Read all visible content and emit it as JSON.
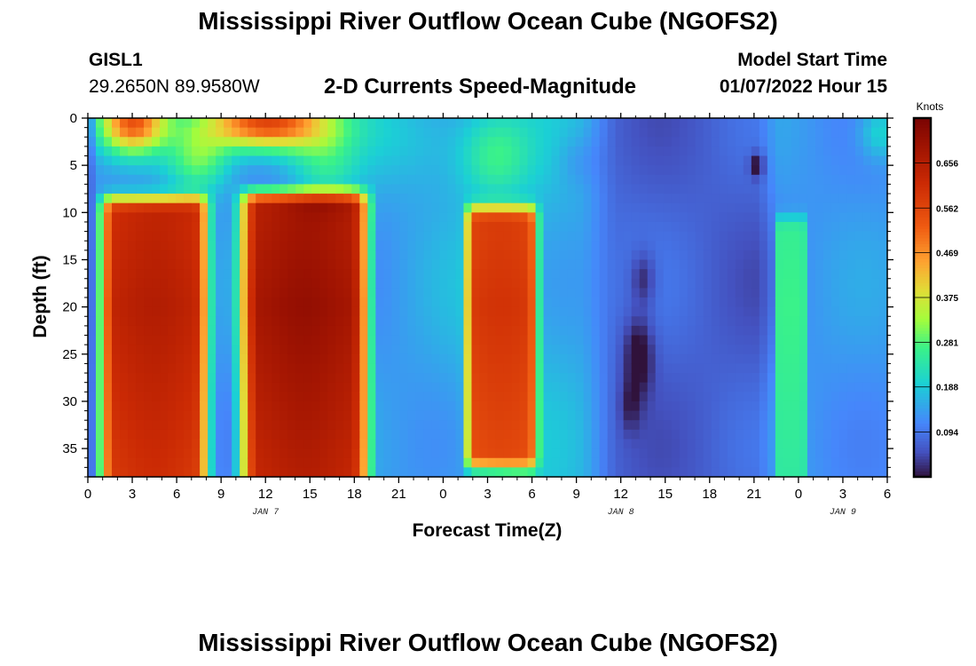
{
  "header": {
    "title": "Mississippi River Outflow Ocean Cube (NGOFS2)",
    "station_id": "GISL1",
    "station_coords": "29.2650N  89.9580W",
    "subtitle": "2-D Currents Speed-Magnitude",
    "model_start_label": "Model Start Time",
    "model_start_value": "01/07/2022 Hour 15"
  },
  "footer": {
    "title": "Mississippi River Outflow Ocean Cube (NGOFS2)"
  },
  "chart_data": {
    "type": "heatmap",
    "xlabel": "Forecast Time(Z)",
    "ylabel": "Depth (ft)",
    "x_ticks": [
      "0",
      "3",
      "6",
      "9",
      "12",
      "15",
      "18",
      "21",
      "0",
      "3",
      "6",
      "9",
      "12",
      "15",
      "18",
      "21",
      "0",
      "3",
      "6"
    ],
    "x_range_hours": [
      0,
      54
    ],
    "date_labels": [
      {
        "text": "JAN 7",
        "hour": 12
      },
      {
        "text": "JAN 8",
        "hour": 36
      },
      {
        "text": "JAN 9",
        "hour": 51
      }
    ],
    "y_ticks": [
      0,
      5,
      10,
      15,
      20,
      25,
      30,
      35
    ],
    "y_range": [
      0,
      38
    ],
    "y_inverted": true,
    "colorbar": {
      "title": "Knots",
      "min": 0,
      "max": 0.75,
      "ticks": [
        "0.094",
        "0.188",
        "0.281",
        "0.375",
        "0.469",
        "0.562",
        "0.656"
      ]
    },
    "speed_features": [
      {
        "t0": 1.0,
        "t1": 8.0,
        "d0": 8.5,
        "d1": 38,
        "peak": 0.62
      },
      {
        "t0": 10.5,
        "t1": 18.8,
        "d0": 8.0,
        "d1": 38,
        "peak": 0.67
      },
      {
        "t0": 25.6,
        "t1": 30.3,
        "d0": 9.5,
        "d1": 37,
        "peak": 0.56
      },
      {
        "t0": 46.5,
        "t1": 48.5,
        "d0": 10.5,
        "d1": 38,
        "peak": 0.27
      }
    ]
  }
}
